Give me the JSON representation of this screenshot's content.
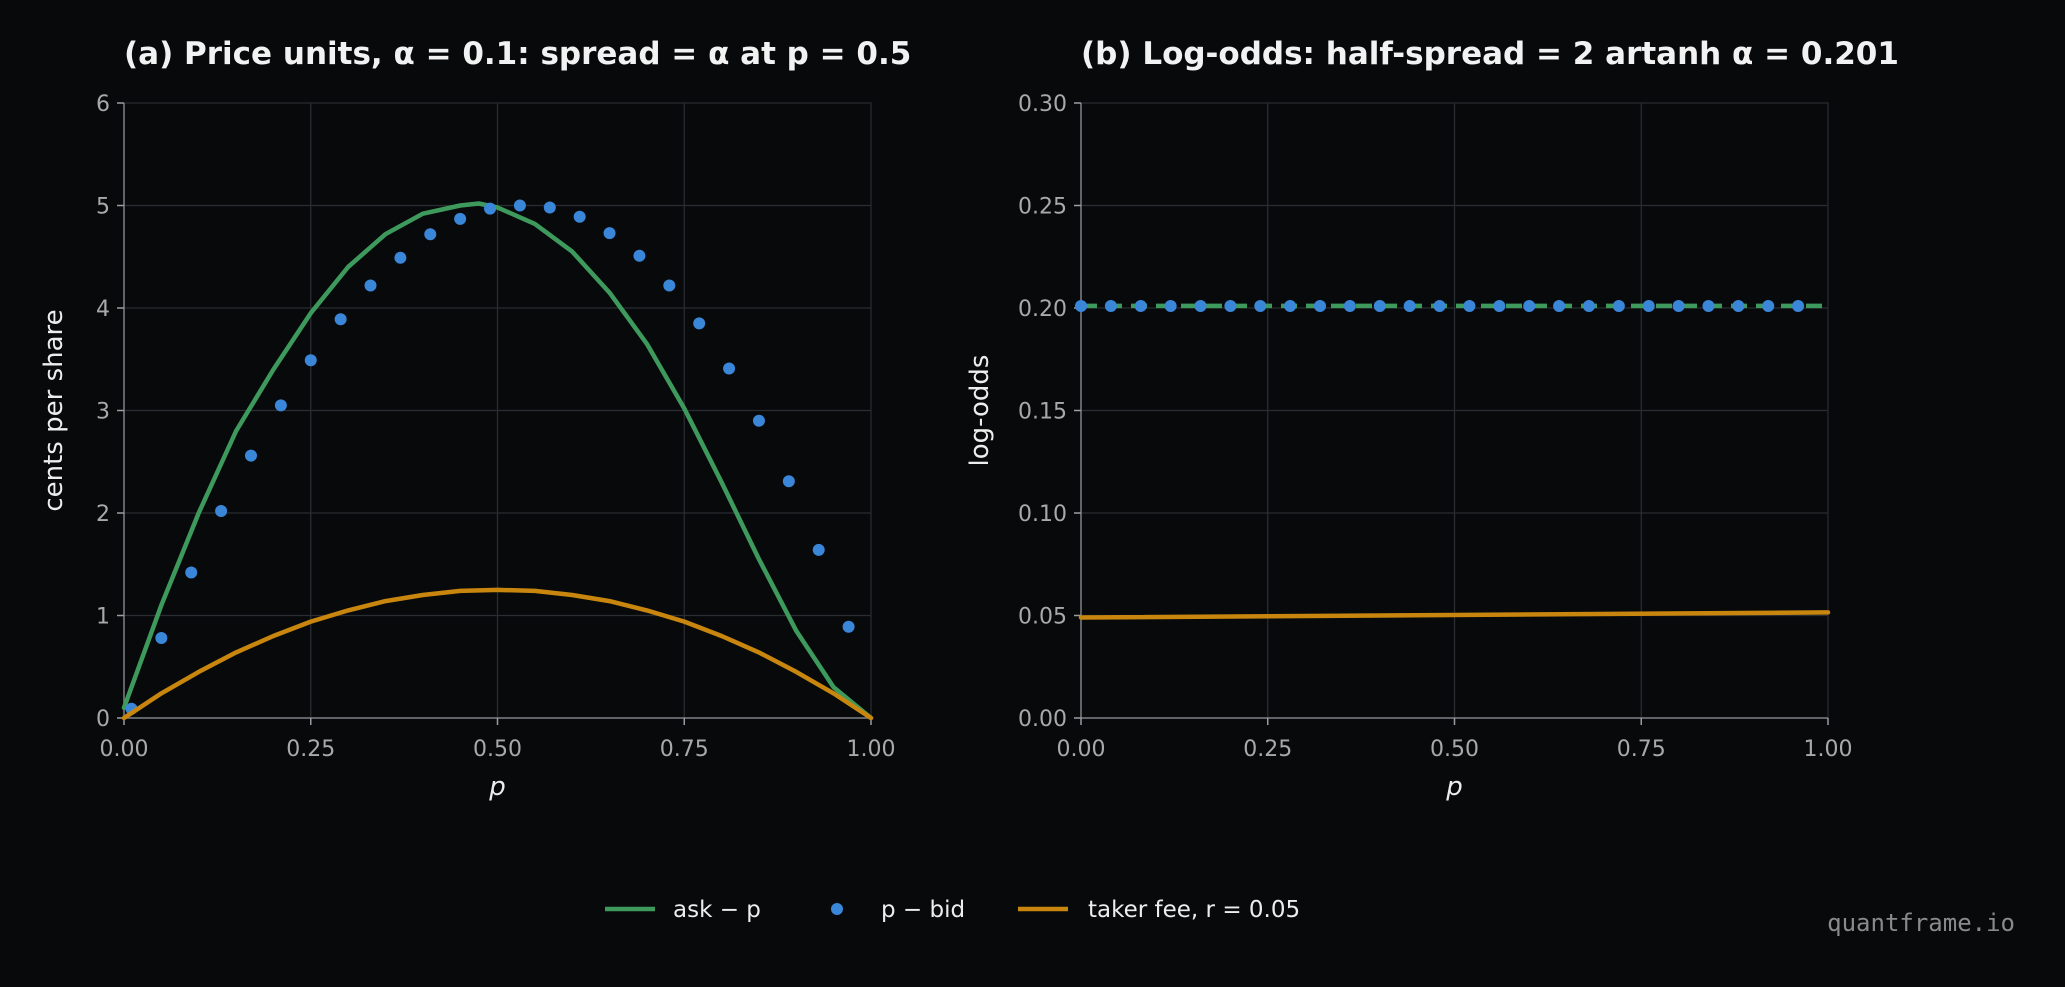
{
  "chart_data": [
    {
      "type": "line",
      "title": "(a) Price units, α = 0.1: spread = α at p = 0.5",
      "xlabel": "p",
      "ylabel": "cents per share",
      "xlim": [
        0,
        1
      ],
      "ylim": [
        0,
        6
      ],
      "xticks": [
        "0.00",
        "0.25",
        "0.50",
        "0.75",
        "1.00"
      ],
      "yticks": [
        "0",
        "1",
        "2",
        "3",
        "4",
        "5",
        "6"
      ],
      "grid": true,
      "series": [
        {
          "name": "ask − p",
          "style": "line",
          "color": "#3e9a5c",
          "x": [
            0.0,
            0.05,
            0.1,
            0.15,
            0.2,
            0.25,
            0.3,
            0.35,
            0.4,
            0.45,
            0.475,
            0.5,
            0.55,
            0.6,
            0.65,
            0.7,
            0.75,
            0.8,
            0.85,
            0.9,
            0.95,
            1.0
          ],
          "y": [
            0.1,
            1.1,
            2.0,
            2.8,
            3.4,
            3.95,
            4.4,
            4.72,
            4.92,
            5.0,
            5.02,
            4.98,
            4.82,
            4.55,
            4.15,
            3.65,
            3.02,
            2.3,
            1.55,
            0.85,
            0.3,
            0.0
          ]
        },
        {
          "name": "p − bid",
          "style": "scatter",
          "color": "#3a86d9",
          "x": [
            0.01,
            0.05,
            0.09,
            0.13,
            0.17,
            0.21,
            0.25,
            0.29,
            0.33,
            0.37,
            0.41,
            0.45,
            0.49,
            0.53,
            0.57,
            0.61,
            0.65,
            0.69,
            0.73,
            0.77,
            0.81,
            0.85,
            0.89,
            0.93,
            0.97
          ],
          "y": [
            0.09,
            0.78,
            1.42,
            2.02,
            2.56,
            3.05,
            3.49,
            3.89,
            4.22,
            4.49,
            4.72,
            4.87,
            4.97,
            5.0,
            4.98,
            4.89,
            4.73,
            4.51,
            4.22,
            3.85,
            3.41,
            2.9,
            2.31,
            1.64,
            0.89
          ]
        },
        {
          "name": "taker fee, r = 0.05",
          "style": "line",
          "color": "#c8860e",
          "x": [
            0.0,
            0.05,
            0.1,
            0.15,
            0.2,
            0.25,
            0.3,
            0.35,
            0.4,
            0.45,
            0.5,
            0.55,
            0.6,
            0.65,
            0.7,
            0.75,
            0.8,
            0.85,
            0.9,
            0.95,
            1.0
          ],
          "y": [
            0.0,
            0.24,
            0.45,
            0.64,
            0.8,
            0.94,
            1.05,
            1.14,
            1.2,
            1.24,
            1.25,
            1.24,
            1.2,
            1.14,
            1.05,
            0.94,
            0.8,
            0.64,
            0.45,
            0.24,
            0.0
          ]
        }
      ]
    },
    {
      "type": "line",
      "title": "(b) Log-odds: half-spread = 2 artanh α = 0.201",
      "xlabel": "p",
      "ylabel": "log-odds",
      "xlim": [
        0,
        1
      ],
      "ylim": [
        0,
        0.3
      ],
      "xticks": [
        "0.00",
        "0.25",
        "0.50",
        "0.75",
        "1.00"
      ],
      "yticks": [
        "0.00",
        "0.05",
        "0.10",
        "0.15",
        "0.20",
        "0.25",
        "0.30"
      ],
      "grid": true,
      "series": [
        {
          "name": "ask − p",
          "style": "dashed",
          "color": "#3e9a5c",
          "x": [
            0.0,
            1.0
          ],
          "y": [
            0.201,
            0.201
          ]
        },
        {
          "name": "p − bid",
          "style": "scatter",
          "color": "#3a86d9",
          "x": [
            0.0,
            0.04,
            0.08,
            0.12,
            0.16,
            0.2,
            0.24,
            0.28,
            0.32,
            0.36,
            0.4,
            0.44,
            0.48,
            0.52,
            0.56,
            0.6,
            0.64,
            0.68,
            0.72,
            0.76,
            0.8,
            0.84,
            0.88,
            0.92,
            0.96
          ],
          "y": [
            0.201,
            0.201,
            0.201,
            0.201,
            0.201,
            0.201,
            0.201,
            0.201,
            0.201,
            0.201,
            0.201,
            0.201,
            0.201,
            0.201,
            0.201,
            0.201,
            0.201,
            0.201,
            0.201,
            0.201,
            0.201,
            0.201,
            0.201,
            0.201,
            0.201
          ]
        },
        {
          "name": "taker fee, r = 0.05",
          "style": "line",
          "color": "#c8860e",
          "x": [
            0.0,
            1.0
          ],
          "y": [
            0.049,
            0.0515
          ]
        }
      ]
    }
  ],
  "legend": {
    "placement": "bottom-center",
    "items": [
      {
        "label": "ask − p",
        "style": "line",
        "color": "#3e9a5c"
      },
      {
        "label": "p − bid",
        "style": "dot",
        "color": "#3a86d9"
      },
      {
        "label": "taker fee, r = 0.05",
        "style": "line",
        "color": "#c8860e"
      }
    ]
  },
  "watermark": "quantframe.io"
}
